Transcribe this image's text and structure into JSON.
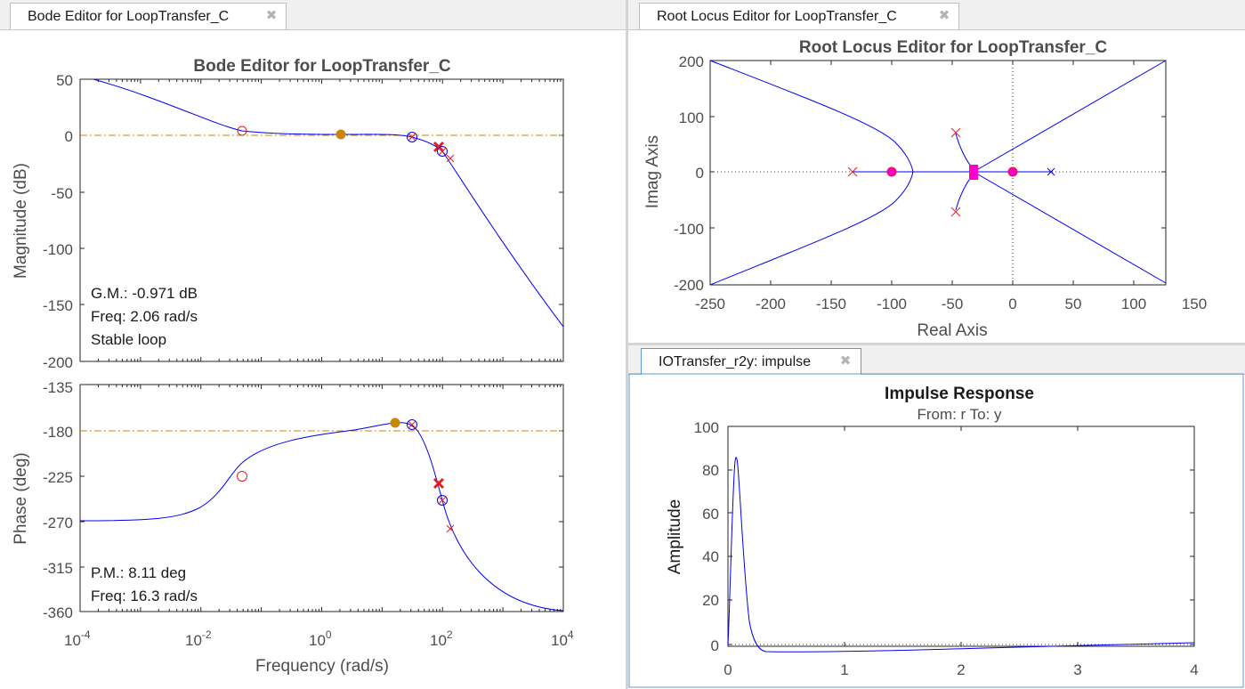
{
  "tabs": {
    "bode": "Bode Editor for LoopTransfer_C",
    "rlocus": "Root Locus Editor for LoopTransfer_C",
    "impulse": "IOTransfer_r2y: impulse"
  },
  "bode": {
    "title": "Bode Editor for LoopTransfer_C",
    "magnitude_ylabel": "Magnitude (dB)",
    "phase_ylabel": "Phase (deg)",
    "xlabel": "Frequency (rad/s)",
    "mag_ticks": [
      "50",
      "0",
      "-50",
      "-100",
      "-150",
      "-200"
    ],
    "phase_ticks": [
      "-135",
      "-180",
      "-225",
      "-270",
      "-315",
      "-360"
    ],
    "x_tick_base": "10",
    "x_tick_exps": [
      "-4",
      "-2",
      "0",
      "2",
      "4"
    ],
    "gm_text": "G.M.: -0.971 dB",
    "gm_freq": "Freq: 2.06 rad/s",
    "stability": "Stable loop",
    "pm_text": "P.M.: 8.11 deg",
    "pm_freq": "Freq: 16.3 rad/s"
  },
  "rlocus": {
    "title": "Root Locus Editor for LoopTransfer_C",
    "xlabel": "Real Axis",
    "ylabel": "Imag Axis",
    "x_ticks": [
      "-250",
      "-200",
      "-150",
      "-100",
      "-50",
      "0",
      "50",
      "100",
      "150"
    ],
    "y_ticks": [
      "200",
      "100",
      "0",
      "-100",
      "-200"
    ]
  },
  "impulse": {
    "title": "Impulse Response",
    "subtitle": "From: r  To: y",
    "ylabel": "Amplitude",
    "x_ticks": [
      "0",
      "1",
      "2",
      "3",
      "4"
    ],
    "y_ticks": [
      "100",
      "80",
      "60",
      "40",
      "20",
      "0"
    ]
  },
  "colors": {
    "curve": "#0000ee",
    "marker": "#e02020",
    "closed_loop_pole": "#ff00cc",
    "margin_dot": "#c8860a",
    "reference_line": "#c8860a"
  },
  "chart_data": [
    {
      "type": "line",
      "name": "bode-magnitude",
      "x": [
        0.0001,
        0.001,
        0.01,
        0.05,
        0.2,
        1,
        5,
        15,
        30,
        60,
        100,
        300,
        1000,
        10000
      ],
      "y": [
        50,
        33,
        16,
        4,
        1.5,
        1,
        1,
        0.5,
        -2,
        -8,
        -16,
        -50,
        -85,
        -168
      ],
      "xscale": "log",
      "xlim": [
        0.0001,
        10000
      ],
      "ylim": [
        -200,
        50
      ],
      "reference_y": 0
    },
    {
      "type": "line",
      "name": "bode-phase",
      "x": [
        0.0001,
        0.001,
        0.005,
        0.02,
        0.05,
        0.2,
        1,
        5,
        15,
        30,
        60,
        100,
        300,
        1000,
        10000
      ],
      "y": [
        -270,
        -270,
        -268,
        -260,
        -225,
        -195,
        -185,
        -180,
        -175,
        -180,
        -215,
        -248,
        -320,
        -350,
        -360
      ],
      "xscale": "log",
      "xlim": [
        0.0001,
        10000
      ],
      "ylim": [
        -360,
        -135
      ],
      "reference_y": -180
    },
    {
      "type": "scatter",
      "name": "root-locus",
      "xlim": [
        -250,
        150
      ],
      "ylim": [
        -200,
        200
      ],
      "open_loop_poles": [
        [
          -133,
          0
        ],
        [
          -48,
          70
        ],
        [
          -48,
          -70
        ],
        [
          32,
          0
        ]
      ],
      "open_loop_zeros": [
        [
          -100,
          0
        ],
        [
          0,
          0
        ]
      ],
      "closed_loop_poles": [
        [
          -100,
          0
        ],
        [
          -32,
          0
        ],
        [
          0,
          0
        ]
      ]
    },
    {
      "type": "line",
      "name": "impulse-response",
      "x": [
        0,
        0.02,
        0.05,
        0.07,
        0.09,
        0.12,
        0.16,
        0.2,
        0.25,
        0.3,
        0.4,
        1,
        2,
        3,
        4
      ],
      "y": [
        0,
        40,
        80,
        85,
        75,
        45,
        20,
        5,
        -1,
        -2,
        -2,
        -1.5,
        -0.5,
        0,
        0.5
      ],
      "xlim": [
        0,
        4
      ],
      "ylim": [
        -2,
        100
      ]
    }
  ]
}
